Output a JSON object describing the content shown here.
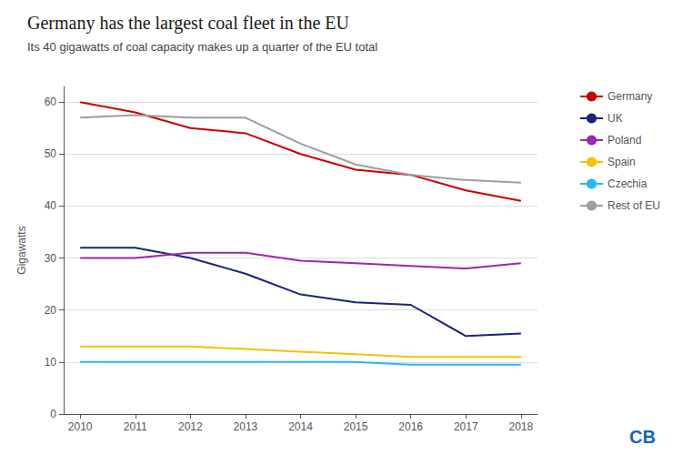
{
  "chart_data": {
    "type": "line",
    "title": "Germany has the largest coal fleet in the EU",
    "subtitle": "Its 40 gigawatts of coal capacity makes up a quarter of the EU total",
    "ylabel": "Gigawatts",
    "x": [
      2010,
      2011,
      2012,
      2013,
      2014,
      2015,
      2016,
      2017,
      2018
    ],
    "series": [
      {
        "name": "Germany",
        "color": "#cc0000",
        "values": [
          60,
          58,
          55,
          54,
          50,
          47,
          46,
          43,
          41
        ]
      },
      {
        "name": "UK",
        "color": "#1a237e",
        "values": [
          32,
          32,
          30,
          27,
          23,
          21.5,
          21,
          15,
          15.5
        ]
      },
      {
        "name": "Poland",
        "color": "#9c27b0",
        "values": [
          30,
          30,
          31,
          31,
          29.5,
          29,
          28.5,
          28,
          29
        ]
      },
      {
        "name": "Spain",
        "color": "#f5c200",
        "values": [
          13,
          13,
          13,
          12.5,
          12,
          11.5,
          11,
          11,
          11
        ]
      },
      {
        "name": "Czechia",
        "color": "#29b6f6",
        "values": [
          10,
          10,
          10,
          10,
          10,
          10,
          9.5,
          9.5,
          9.5
        ]
      },
      {
        "name": "Rest of EU",
        "color": "#9e9e9e",
        "values": [
          57,
          57.5,
          57,
          57,
          52,
          48,
          46,
          45,
          44.5
        ]
      }
    ],
    "xlim": [
      2009.7,
      2018.3
    ],
    "xticks": [
      2010,
      2011,
      2012,
      2013,
      2014,
      2015,
      2016,
      2017,
      2018
    ],
    "ylim": [
      0,
      63
    ],
    "yticks": [
      0,
      10,
      20,
      30,
      40,
      50,
      60
    ],
    "grid": true,
    "legend": "right",
    "annotations": [
      {
        "text": "CB",
        "color": "#1565c0"
      }
    ]
  }
}
